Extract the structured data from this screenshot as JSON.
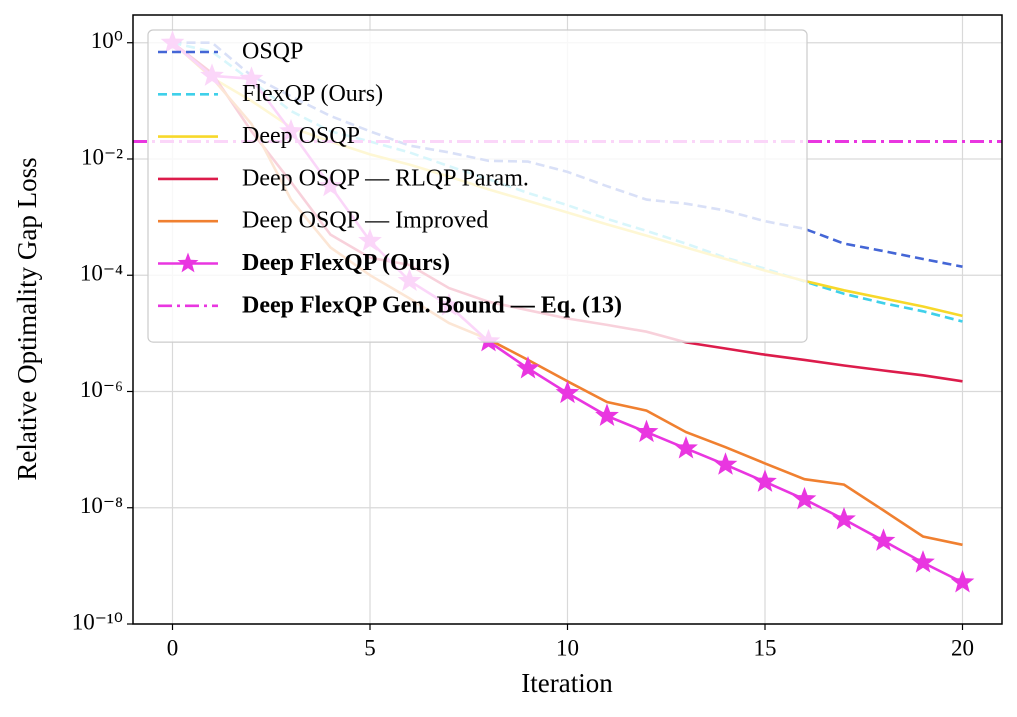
{
  "chart_data": {
    "type": "line",
    "x_label": "Iteration",
    "y_label": "Relative Optimality Gap Loss",
    "log_y": true,
    "grid": true,
    "legend": "upper left",
    "xlim": [
      -1,
      21
    ],
    "xticks": [
      0,
      5,
      10,
      15,
      20
    ],
    "ylim": [
      1e-10,
      3
    ],
    "yticks": [
      {
        "value": 1,
        "label": "10⁰"
      },
      {
        "value": 0.01,
        "label": "10⁻²"
      },
      {
        "value": 0.0001,
        "label": "10⁻⁴"
      },
      {
        "value": 1e-06,
        "label": "10⁻⁶"
      },
      {
        "value": 1e-08,
        "label": "10⁻⁸"
      },
      {
        "value": 1e-10,
        "label": "10⁻¹⁰"
      }
    ],
    "x": [
      0,
      1,
      2,
      3,
      4,
      5,
      6,
      7,
      8,
      9,
      10,
      11,
      12,
      13,
      14,
      15,
      16,
      17,
      18,
      19,
      20
    ],
    "series": [
      {
        "name": "OSQP",
        "color": "#4466d6",
        "dash": "dashed",
        "values": [
          1,
          1,
          0.27,
          0.12,
          0.055,
          0.03,
          0.017,
          0.013,
          0.0093,
          0.009,
          0.006,
          0.0034,
          0.002,
          0.0017,
          0.0013,
          0.00085,
          0.00063,
          0.00035,
          0.00026,
          0.00019,
          0.00014
        ]
      },
      {
        "name": "FlexQP (Ours)",
        "color": "#3fd0ea",
        "dash": "dashed",
        "values": [
          1,
          0.7,
          0.22,
          0.067,
          0.03,
          0.02,
          0.013,
          0.0075,
          0.0045,
          0.0026,
          0.0016,
          0.00093,
          0.00058,
          0.00035,
          0.0002,
          0.00013,
          7.8e-05,
          4.8e-05,
          3.3e-05,
          2.4e-05,
          1.6e-05
        ]
      },
      {
        "name": "Deep OSQP",
        "color": "#f7d82a",
        "dash": "solid",
        "values": [
          1,
          0.25,
          0.1,
          0.035,
          0.02,
          0.012,
          0.008,
          0.005,
          0.003,
          0.0019,
          0.0012,
          0.00075,
          0.00048,
          0.0003,
          0.00019,
          0.00012,
          8e-05,
          5.5e-05,
          4e-05,
          2.9e-05,
          2e-05
        ]
      },
      {
        "name": "Deep OSQP — RLQP Param.",
        "color": "#dc1c4b",
        "dash": "solid",
        "values": [
          1,
          0.3,
          0.03,
          0.004,
          0.0005,
          0.0002,
          0.00015,
          6e-05,
          3.5e-05,
          2.5e-05,
          1.8e-05,
          1.4e-05,
          1.07e-05,
          7e-06,
          5.5e-06,
          4.3e-06,
          3.5e-06,
          2.8e-06,
          2.3e-06,
          1.9e-06,
          1.5e-06
        ]
      },
      {
        "name": "Deep OSQP — Improved",
        "color": "#f08030",
        "dash": "solid",
        "values": [
          1,
          0.25,
          0.04,
          0.002,
          0.0003,
          0.0001,
          4e-05,
          1.5e-05,
          7.9e-06,
          3.5e-06,
          1.5e-06,
          6.6e-07,
          4.7e-07,
          2e-07,
          1.1e-07,
          5.8e-08,
          3.1e-08,
          2.5e-08,
          9e-09,
          3.2e-09,
          2.3e-09
        ]
      },
      {
        "name": "Deep FlexQP (Ours)",
        "color": "#e936e0",
        "dash": "solid",
        "marker": "star",
        "bold": true,
        "values": [
          1,
          0.27,
          0.24,
          0.03,
          0.0034,
          0.00039,
          8e-05,
          3e-05,
          7.3e-06,
          2.5e-06,
          9.4e-07,
          3.8e-07,
          2e-07,
          1.05e-07,
          5.5e-08,
          2.8e-08,
          1.4e-08,
          6.3e-09,
          2.7e-09,
          1.14e-09,
          5.2e-10
        ]
      },
      {
        "name": "Deep FlexQP Gen. Bound — Eq. (13)",
        "color": "#e936e0",
        "dash": "dashdot",
        "bold": true,
        "y": 0.02
      }
    ]
  }
}
